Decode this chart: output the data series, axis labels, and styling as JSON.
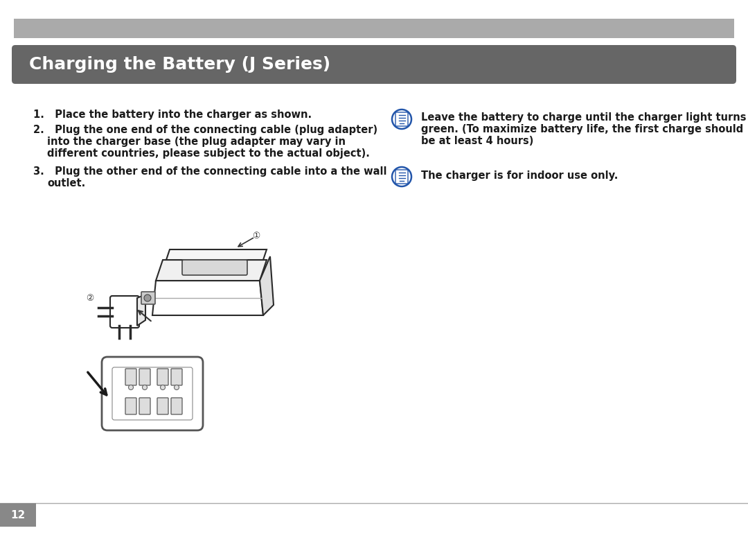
{
  "title": "Charging the Battery (J Series)",
  "title_bg": "#666666",
  "title_color": "#ffffff",
  "top_bar_color": "#aaaaaa",
  "bg_color": "#ffffff",
  "page_number": "12",
  "page_num_bg": "#888888",
  "body_text_color": "#1a1a1a",
  "icon_color": "#2255aa",
  "font_size_title": 18,
  "font_size_body": 10.5,
  "font_size_page": 11,
  "note1_lines": [
    "Leave the battery to charge until the charger light turns",
    "green. (To maximize battery life, the first charge should",
    "be at least 4 hours)"
  ],
  "note2": "The charger is for indoor use only."
}
